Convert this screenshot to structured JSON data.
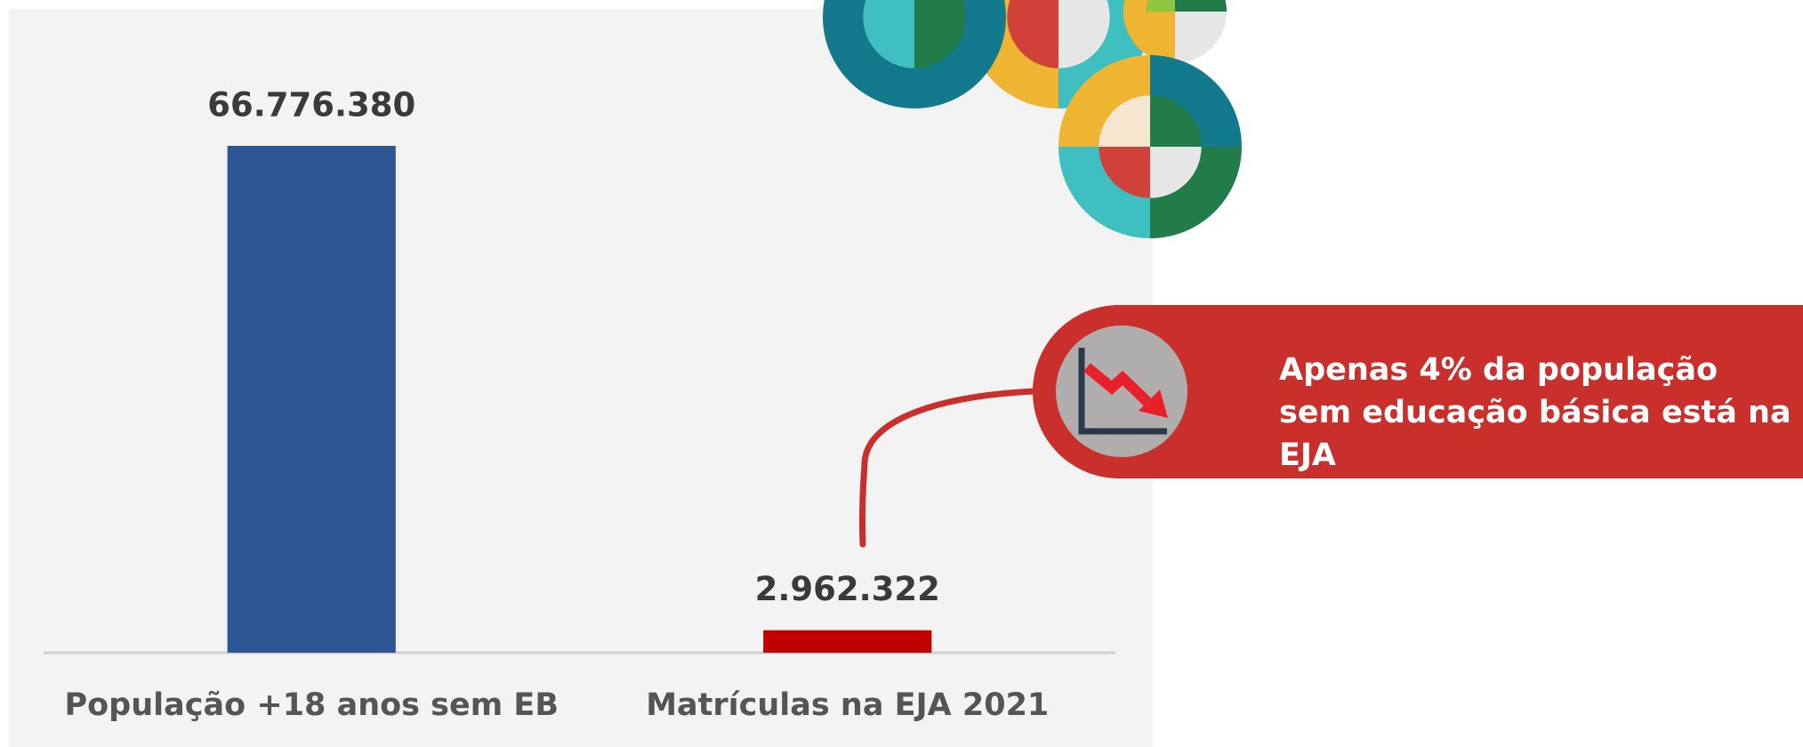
{
  "chart_data": {
    "type": "bar",
    "categories": [
      "População +18 anos sem EB",
      "Matrículas na EJA 2021"
    ],
    "values": [
      66776380,
      2962322
    ],
    "value_labels": [
      "66.776.380",
      "2.962.322"
    ],
    "colors": [
      "#2e5594",
      "#c00000"
    ],
    "annotation": "Apenas 4% da população sem educação básica está na EJA"
  }
}
